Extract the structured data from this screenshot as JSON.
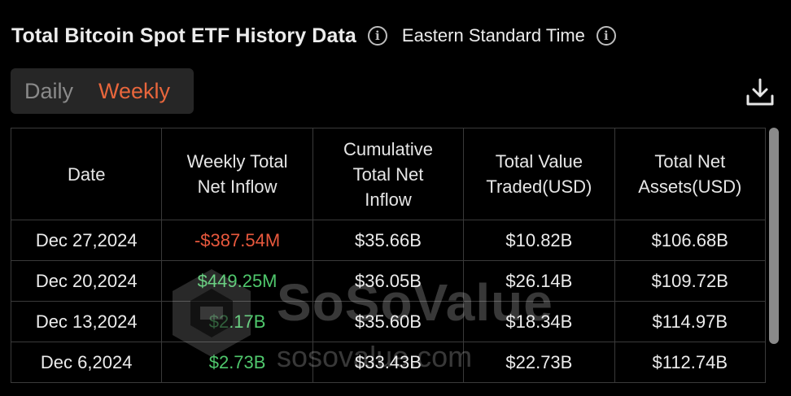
{
  "header": {
    "title": "Total Bitcoin Spot ETF History Data",
    "timezone": "Eastern Standard Time"
  },
  "period_tabs": {
    "daily": "Daily",
    "weekly": "Weekly",
    "active": "Weekly"
  },
  "colors": {
    "accent": "#e8663c",
    "negative": "#e8583d",
    "positive": "#4fc76c",
    "background": "#000000"
  },
  "table": {
    "headers": [
      "Date",
      "Weekly Total Net Inflow",
      "Cumulative Total Net Inflow",
      "Total Value Traded(USD)",
      "Total Net Assets(USD)"
    ],
    "header_lines": [
      [
        "Date"
      ],
      [
        "Weekly Total",
        "Net Inflow"
      ],
      [
        "Cumulative",
        "Total Net",
        "Inflow"
      ],
      [
        "Total Value",
        "Traded(USD)"
      ],
      [
        "Total Net",
        "Assets(USD)"
      ]
    ],
    "rows": [
      {
        "date": "Dec 27,2024",
        "weekly_net_inflow": "-$387.54M",
        "sign": "neg",
        "cumulative_net_inflow": "$35.66B",
        "value_traded": "$10.82B",
        "net_assets": "$106.68B"
      },
      {
        "date": "Dec 20,2024",
        "weekly_net_inflow": "$449.25M",
        "sign": "pos",
        "cumulative_net_inflow": "$36.05B",
        "value_traded": "$26.14B",
        "net_assets": "$109.72B"
      },
      {
        "date": "Dec 13,2024",
        "weekly_net_inflow": "$2.17B",
        "sign": "pos",
        "cumulative_net_inflow": "$35.60B",
        "value_traded": "$18.34B",
        "net_assets": "$114.97B"
      },
      {
        "date": "Dec 6,2024",
        "weekly_net_inflow": "$2.73B",
        "sign": "pos",
        "cumulative_net_inflow": "$33.43B",
        "value_traded": "$22.73B",
        "net_assets": "$112.74B"
      }
    ]
  },
  "watermark": {
    "brand": "SoSoValue",
    "url": "sosovalue.com"
  }
}
